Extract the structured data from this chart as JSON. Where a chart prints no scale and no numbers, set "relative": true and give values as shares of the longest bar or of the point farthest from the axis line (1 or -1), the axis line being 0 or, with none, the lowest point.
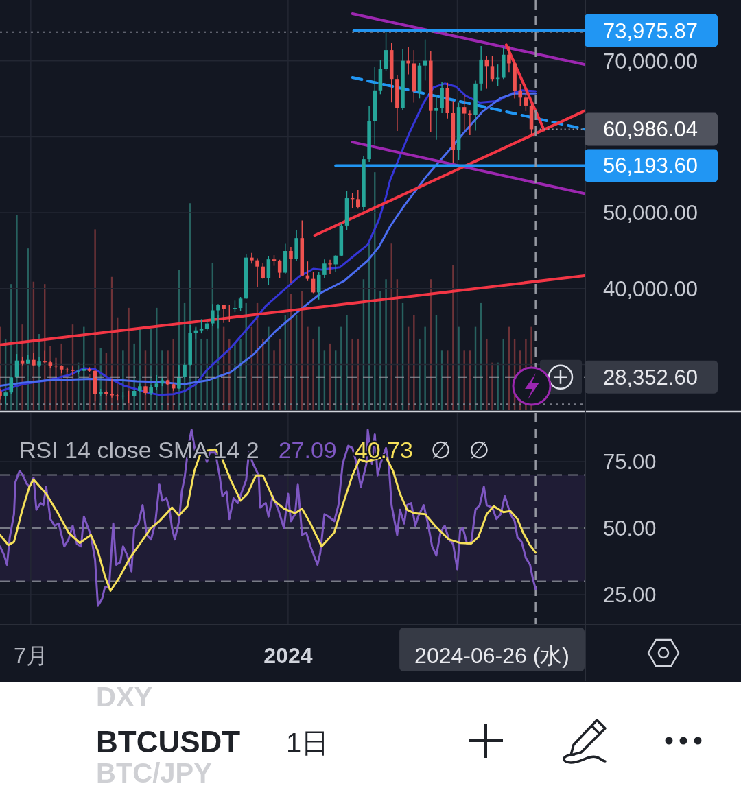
{
  "chart_data": [
    {
      "type": "candlestick",
      "x": [
        "2023-06-09",
        "2023-06-13",
        "2023-06-17",
        "2023-06-21",
        "2023-06-25",
        "2023-06-29",
        "2023-07-03",
        "2023-07-07",
        "2023-07-11",
        "2023-07-15",
        "2023-07-19",
        "2023-07-23",
        "2023-07-27",
        "2023-07-31",
        "2023-08-04",
        "2023-08-08",
        "2023-08-12",
        "2023-08-16",
        "2023-08-20",
        "2023-08-24",
        "2023-08-28",
        "2023-09-01",
        "2023-09-05",
        "2023-09-09",
        "2023-09-13",
        "2023-09-17",
        "2023-09-21",
        "2023-09-25",
        "2023-09-29",
        "2023-10-03",
        "2023-10-07",
        "2023-10-11",
        "2023-10-15",
        "2023-10-19",
        "2023-10-23",
        "2023-10-27",
        "2023-10-31",
        "2023-11-04",
        "2023-11-08",
        "2023-11-12",
        "2023-11-16",
        "2023-11-20",
        "2023-11-24",
        "2023-11-28",
        "2023-12-02",
        "2023-12-06",
        "2023-12-10",
        "2023-12-14",
        "2023-12-18",
        "2023-12-22",
        "2023-12-26",
        "2023-12-30",
        "2024-01-03",
        "2024-01-07",
        "2024-01-11",
        "2024-01-15",
        "2024-01-19",
        "2024-01-23",
        "2024-01-27",
        "2024-01-31",
        "2024-02-04",
        "2024-02-08",
        "2024-02-12",
        "2024-02-16",
        "2024-02-20",
        "2024-02-24",
        "2024-02-28",
        "2024-03-03",
        "2024-03-07",
        "2024-03-11",
        "2024-03-15",
        "2024-03-19",
        "2024-03-23",
        "2024-03-27",
        "2024-03-31",
        "2024-04-04",
        "2024-04-08",
        "2024-04-12",
        "2024-04-16",
        "2024-04-20",
        "2024-04-24",
        "2024-04-28",
        "2024-05-02",
        "2024-05-06",
        "2024-05-10",
        "2024-05-14",
        "2024-05-18",
        "2024-05-22",
        "2024-05-26",
        "2024-05-30",
        "2024-06-03",
        "2024-06-07",
        "2024-06-11",
        "2024-06-15",
        "2024-06-19",
        "2024-06-23"
      ],
      "ohlc": [
        [
          26480,
          26800,
          25400,
          25900
        ],
        [
          25900,
          26400,
          24800,
          26330
        ],
        [
          26330,
          28400,
          26150,
          28300
        ],
        [
          28300,
          31400,
          28250,
          30530
        ],
        [
          30530,
          31050,
          29900,
          30080
        ],
        [
          30080,
          31250,
          30050,
          30620
        ],
        [
          30620,
          31500,
          29850,
          29900
        ],
        [
          29900,
          30950,
          29700,
          30400
        ],
        [
          30400,
          31800,
          30200,
          30300
        ],
        [
          30300,
          30400,
          29500,
          29850
        ],
        [
          29850,
          30200,
          29600,
          29800
        ],
        [
          29800,
          29900,
          28850,
          29350
        ],
        [
          29350,
          29600,
          29000,
          29280
        ],
        [
          29280,
          29750,
          28600,
          29170
        ],
        [
          29170,
          29300,
          28700,
          29180
        ],
        [
          29180,
          30250,
          29150,
          29420
        ],
        [
          29420,
          29650,
          29050,
          29170
        ],
        [
          29170,
          29250,
          25200,
          26100
        ],
        [
          26100,
          26800,
          25800,
          26430
        ],
        [
          26430,
          26580,
          25800,
          26100
        ],
        [
          26100,
          28150,
          25650,
          25940
        ],
        [
          25940,
          26150,
          25330,
          25800
        ],
        [
          25800,
          26430,
          25400,
          25900
        ],
        [
          25900,
          26550,
          24900,
          25850
        ],
        [
          25850,
          26800,
          25750,
          26530
        ],
        [
          26530,
          27480,
          26380,
          27130
        ],
        [
          27130,
          27160,
          26000,
          26250
        ],
        [
          26250,
          27300,
          25990,
          27030
        ],
        [
          27030,
          28600,
          26650,
          27500
        ],
        [
          27500,
          28300,
          27150,
          27930
        ],
        [
          27930,
          28000,
          27250,
          27400
        ],
        [
          27400,
          27500,
          26550,
          26850
        ],
        [
          26850,
          30000,
          26800,
          28330
        ],
        [
          28330,
          30200,
          28200,
          29980
        ],
        [
          29980,
          35200,
          29900,
          34150
        ],
        [
          34150,
          34800,
          33400,
          34500
        ],
        [
          34500,
          35980,
          34100,
          34730
        ],
        [
          34730,
          35900,
          34500,
          35420
        ],
        [
          35420,
          37970,
          35100,
          37140
        ],
        [
          37140,
          37980,
          34800,
          37880
        ],
        [
          37880,
          37900,
          35500,
          37360
        ],
        [
          37360,
          37850,
          35650,
          37290
        ],
        [
          37290,
          38420,
          36900,
          37450
        ],
        [
          37450,
          38900,
          37000,
          38690
        ],
        [
          38690,
          44500,
          38650,
          44080
        ],
        [
          44080,
          44700,
          43300,
          43720
        ],
        [
          43720,
          44000,
          40200,
          42900
        ],
        [
          42900,
          43400,
          41300,
          41380
        ],
        [
          41380,
          44300,
          40500,
          43850
        ],
        [
          43850,
          44400,
          43000,
          43600
        ],
        [
          43600,
          43800,
          41420,
          42100
        ],
        [
          42100,
          45900,
          41900,
          44950
        ],
        [
          44950,
          45500,
          40750,
          43930
        ],
        [
          43930,
          47700,
          43600,
          46650
        ],
        [
          46650,
          48970,
          41700,
          41730
        ],
        [
          41730,
          43580,
          41000,
          41280
        ],
        [
          41280,
          42200,
          39400,
          39500
        ],
        [
          39500,
          42200,
          38560,
          41800
        ],
        [
          41800,
          43840,
          41400,
          43300
        ],
        [
          43300,
          43800,
          41880,
          43190
        ],
        [
          43190,
          44400,
          42250,
          44340
        ],
        [
          44340,
          48600,
          44300,
          48300
        ],
        [
          48300,
          52820,
          47700,
          51900
        ],
        [
          51900,
          52570,
          50620,
          51780
        ],
        [
          51780,
          52980,
          50520,
          50730
        ],
        [
          50730,
          57500,
          50350,
          57040
        ],
        [
          57040,
          64000,
          56700,
          62030
        ],
        [
          62030,
          69170,
          59000,
          66100
        ],
        [
          66100,
          70130,
          65600,
          68900
        ],
        [
          68900,
          73777,
          68700,
          71400
        ],
        [
          71400,
          72400,
          64530,
          67600
        ],
        [
          67600,
          68100,
          60760,
          63800
        ],
        [
          63800,
          71500,
          63500,
          70000
        ],
        [
          70000,
          71770,
          68200,
          69650
        ],
        [
          69650,
          71400,
          64500,
          65960
        ],
        [
          65960,
          69700,
          65060,
          69360
        ],
        [
          69360,
          72800,
          67400,
          70000
        ],
        [
          70000,
          71300,
          60660,
          63400
        ],
        [
          63400,
          65450,
          59600,
          63800
        ],
        [
          63800,
          67200,
          63100,
          66400
        ],
        [
          66400,
          67100,
          62400,
          63100
        ],
        [
          63100,
          64700,
          56550,
          58250
        ],
        [
          58250,
          64500,
          56900,
          63900
        ],
        [
          63900,
          65500,
          60900,
          63050
        ],
        [
          63050,
          63450,
          60200,
          62900
        ],
        [
          62900,
          67400,
          60800,
          67000
        ],
        [
          67000,
          71950,
          66100,
          70150
        ],
        [
          70150,
          70600,
          66300,
          69300
        ],
        [
          69300,
          70600,
          67300,
          67600
        ],
        [
          67600,
          69500,
          66700,
          67750
        ],
        [
          67750,
          71750,
          67600,
          70800
        ],
        [
          70800,
          71950,
          68500,
          69650
        ],
        [
          69650,
          70200,
          65050,
          66000
        ],
        [
          66000,
          66900,
          64050,
          65150
        ],
        [
          65150,
          65700,
          63380,
          64100
        ],
        [
          64100,
          64300,
          60200,
          60986.04
        ]
      ],
      "xlim": [
        "2023-06-09",
        "2024-07-31"
      ],
      "xticks": [
        {
          "value": "2023-07-01",
          "label": null
        },
        {
          "value": "2024-01-01",
          "label": null
        },
        {
          "value": "2024-05-01",
          "label": null
        }
      ],
      "ylim": [
        24000,
        78000
      ],
      "yticks": [
        {
          "value": 30000,
          "label": null
        },
        {
          "value": 40000,
          "label": "40,000.00"
        },
        {
          "value": 50000,
          "label": "50,000.00"
        },
        {
          "value": 60000,
          "label": null
        },
        {
          "value": 70000,
          "label": "70,000.00"
        }
      ],
      "tick_labels": "y",
      "grid": true,
      "series": [
        {
          "type": "line",
          "color": "#3535d6",
          "x": [
            "2023-06-09",
            "2023-06-25",
            "2023-07-12",
            "2023-07-28",
            "2023-08-08",
            "2023-08-16",
            "2023-08-25",
            "2023-09-06",
            "2023-09-23",
            "2023-10-01",
            "2023-10-11",
            "2023-10-19",
            "2023-10-27",
            "2023-11-04",
            "2023-11-21",
            "2023-12-07",
            "2023-12-16",
            "2023-12-27",
            "2024-01-09",
            "2024-01-19",
            "2024-01-25",
            "2024-02-07",
            "2024-02-27",
            "2024-03-06",
            "2024-03-11",
            "2024-03-14",
            "2024-03-18",
            "2024-03-28",
            "2024-04-07",
            "2024-04-14",
            "2024-04-22",
            "2024-04-30",
            "2024-05-07",
            "2024-05-17",
            "2024-05-30",
            "2024-06-09",
            "2024-06-16",
            "2024-06-26"
          ],
          "values": [
            26500,
            27400,
            27900,
            28600,
            29500,
            29400,
            28300,
            27200,
            26300,
            26000,
            26100,
            26500,
            27400,
            29300,
            32200,
            35600,
            37700,
            39500,
            41600,
            42600,
            42500,
            42800,
            45800,
            49100,
            52100,
            54300,
            56100,
            60600,
            64500,
            66500,
            67000,
            66600,
            65400,
            64500,
            64700,
            65700,
            66100,
            66000
          ]
        },
        {
          "type": "line",
          "color": "#4a6cf0",
          "x": [
            "2023-06-09",
            "2023-06-25",
            "2023-07-12",
            "2023-08-13",
            "2023-08-30",
            "2023-09-15",
            "2023-10-01",
            "2023-10-18",
            "2023-11-04",
            "2023-11-21",
            "2023-12-07",
            "2023-12-23",
            "2024-01-09",
            "2024-01-25",
            "2024-02-10",
            "2024-02-27",
            "2024-03-06",
            "2024-03-14",
            "2024-03-24",
            "2024-04-09",
            "2024-04-26",
            "2024-05-06",
            "2024-05-19",
            "2024-06-01",
            "2024-06-11",
            "2024-06-26"
          ],
          "values": [
            27200,
            27600,
            27900,
            28100,
            28000,
            27800,
            27700,
            27400,
            27900,
            29000,
            31300,
            34400,
            37100,
            39500,
            41000,
            43700,
            45500,
            48200,
            50900,
            54800,
            58400,
            60600,
            63300,
            65100,
            65700,
            65700
          ]
        },
        {
          "type": "line",
          "color": "#9c27b0",
          "x": [
            "2024-02-16",
            "2024-07-31"
          ],
          "values": [
            76200,
            69500
          ]
        },
        {
          "type": "line",
          "color": "#9c27b0",
          "x": [
            "2024-02-16",
            "2024-07-31"
          ],
          "values": [
            59300,
            52500
          ]
        },
        {
          "type": "line",
          "color": "#2196f3",
          "line_style": "dashed",
          "x": [
            "2024-02-16",
            "2024-07-31"
          ],
          "values": [
            67800,
            61000
          ]
        },
        {
          "type": "line",
          "color": "#f23645",
          "x": [
            "2024-01-20",
            "2024-07-31"
          ],
          "values": [
            47000,
            63400
          ]
        },
        {
          "type": "line",
          "color": "#f23645",
          "x": [
            "2023-06-09",
            "2024-07-31"
          ],
          "values": [
            32600,
            41700
          ]
        },
        {
          "type": "line",
          "color": "#f23645",
          "x": [
            "2024-06-05",
            "2024-07-02"
          ],
          "values": [
            72100,
            60900
          ]
        },
        {
          "type": "line",
          "color": "#2196f3",
          "x": [
            "2024-02-17",
            "2024-07-31"
          ],
          "values": [
            73975.87,
            73975.87
          ],
          "value_labels": [
            null,
            "73,975.87"
          ]
        },
        {
          "type": "line",
          "color": "#2196f3",
          "x": [
            "2024-02-04",
            "2024-07-31"
          ],
          "values": [
            56193.6,
            56193.6
          ],
          "value_labels": [
            null,
            "56,193.60"
          ]
        }
      ],
      "ref_lines": [
        {
          "axis": "y",
          "value": 73777,
          "line_style": "dotted",
          "color": "#787b86"
        },
        {
          "axis": "y",
          "value": 24800,
          "line_style": "dotted",
          "color": "#787b86"
        },
        {
          "axis": "y",
          "value": 28352.6,
          "label": "28,352.60",
          "line_style": "dashed",
          "color": "#9598a1"
        },
        {
          "axis": "x",
          "value": "2024-06-26",
          "line_style": "dashed",
          "color": "#9598a1"
        }
      ],
      "annotations": [
        {
          "text": "60,986.04",
          "x": "2024-06-26",
          "y": 60986.04
        }
      ]
    },
    {
      "type": "bar",
      "relative": true,
      "tick_labels": false,
      "xlim": [
        "2023-06-09",
        "2024-07-31"
      ],
      "x": [
        "2023-06-09",
        "2023-06-13",
        "2023-06-17",
        "2023-06-21",
        "2023-06-25",
        "2023-06-29",
        "2023-07-03",
        "2023-07-07",
        "2023-07-11",
        "2023-07-15",
        "2023-07-19",
        "2023-07-23",
        "2023-07-27",
        "2023-07-31",
        "2023-08-04",
        "2023-08-08",
        "2023-08-12",
        "2023-08-16",
        "2023-08-20",
        "2023-08-24",
        "2023-08-28",
        "2023-09-01",
        "2023-09-05",
        "2023-09-09",
        "2023-09-13",
        "2023-09-17",
        "2023-09-21",
        "2023-09-25",
        "2023-09-29",
        "2023-10-03",
        "2023-10-07",
        "2023-10-11",
        "2023-10-15",
        "2023-10-19",
        "2023-10-23",
        "2023-10-27",
        "2023-10-31",
        "2023-11-04",
        "2023-11-08",
        "2023-11-12",
        "2023-11-16",
        "2023-11-20",
        "2023-11-24",
        "2023-11-28",
        "2023-12-02",
        "2023-12-06",
        "2023-12-10",
        "2023-12-14",
        "2023-12-18",
        "2023-12-22",
        "2023-12-26",
        "2023-12-30",
        "2024-01-03",
        "2024-01-07",
        "2024-01-11",
        "2024-01-15",
        "2024-01-19",
        "2024-01-23",
        "2024-01-27",
        "2024-01-31",
        "2024-02-04",
        "2024-02-08",
        "2024-02-12",
        "2024-02-16",
        "2024-02-20",
        "2024-02-24",
        "2024-02-28",
        "2024-03-03",
        "2024-03-07",
        "2024-03-11",
        "2024-03-15",
        "2024-03-19",
        "2024-03-23",
        "2024-03-27",
        "2024-03-31",
        "2024-04-04",
        "2024-04-08",
        "2024-04-12",
        "2024-04-16",
        "2024-04-20",
        "2024-04-24",
        "2024-04-28",
        "2024-05-02",
        "2024-05-06",
        "2024-05-10",
        "2024-05-14",
        "2024-05-18",
        "2024-05-22",
        "2024-05-26",
        "2024-05-30",
        "2024-06-03",
        "2024-06-07",
        "2024-06-11",
        "2024-06-15",
        "2024-06-19",
        "2024-06-23"
      ],
      "values": [
        0.35,
        0.3,
        0.53,
        0.82,
        0.36,
        0.68,
        0.54,
        0.32,
        0.53,
        0.27,
        0.22,
        0.28,
        0.18,
        0.36,
        0.2,
        0.35,
        0.15,
        0.76,
        0.26,
        0.24,
        0.56,
        0.39,
        0.25,
        0.43,
        0.28,
        0.34,
        0.25,
        0.34,
        0.43,
        0.25,
        0.25,
        0.3,
        0.59,
        0.45,
        0.87,
        0.35,
        0.3,
        0.3,
        0.62,
        0.4,
        0.35,
        0.3,
        0.28,
        0.3,
        0.45,
        0.35,
        0.45,
        0.3,
        0.35,
        0.25,
        0.3,
        0.4,
        0.49,
        0.4,
        0.5,
        0.35,
        0.3,
        0.35,
        0.25,
        0.28,
        0.25,
        0.35,
        0.4,
        0.3,
        0.3,
        0.55,
        0.7,
        1,
        0.5,
        0.55,
        0.7,
        0.55,
        0.45,
        0.35,
        0.4,
        0.3,
        0.35,
        0.55,
        0.4,
        0.25,
        0.25,
        0.61,
        0.35,
        0.25,
        0.25,
        0.35,
        0.45,
        0.3,
        0.2,
        0.2,
        0.3,
        0.35,
        0.3,
        0.25,
        0.3,
        0.35
      ],
      "colors": [
        "#6e3338",
        "#27615f",
        "#27615f",
        "#27615f",
        "#6e3338",
        "#27615f",
        "#6e3338",
        "#27615f",
        "#6e3338",
        "#6e3338",
        "#6e3338",
        "#6e3338",
        "#6e3338",
        "#6e3338",
        "#27615f",
        "#27615f",
        "#6e3338",
        "#6e3338",
        "#27615f",
        "#6e3338",
        "#6e3338",
        "#6e3338",
        "#27615f",
        "#6e3338",
        "#27615f",
        "#27615f",
        "#6e3338",
        "#27615f",
        "#27615f",
        "#27615f",
        "#6e3338",
        "#6e3338",
        "#27615f",
        "#27615f",
        "#27615f",
        "#27615f",
        "#27615f",
        "#27615f",
        "#27615f",
        "#27615f",
        "#6e3338",
        "#6e3338",
        "#27615f",
        "#27615f",
        "#27615f",
        "#6e3338",
        "#6e3338",
        "#6e3338",
        "#27615f",
        "#6e3338",
        "#6e3338",
        "#27615f",
        "#6e3338",
        "#27615f",
        "#6e3338",
        "#6e3338",
        "#6e3338",
        "#27615f",
        "#27615f",
        "#6e3338",
        "#27615f",
        "#27615f",
        "#27615f",
        "#6e3338",
        "#6e3338",
        "#27615f",
        "#27615f",
        "#27615f",
        "#27615f",
        "#27615f",
        "#6e3338",
        "#6e3338",
        "#27615f",
        "#6e3338",
        "#6e3338",
        "#27615f",
        "#27615f",
        "#6e3338",
        "#27615f",
        "#27615f",
        "#6e3338",
        "#6e3338",
        "#27615f",
        "#6e3338",
        "#6e3338",
        "#27615f",
        "#27615f",
        "#6e3338",
        "#6e3338",
        "#27615f",
        "#27615f",
        "#6e3338",
        "#6e3338",
        "#6e3338",
        "#6e3338",
        "#6e3338"
      ]
    },
    {
      "type": "line",
      "title": "RSI 14 close SMA 14 2",
      "annotations": [
        "27.09",
        "40.73",
        "∅",
        "∅"
      ],
      "series": [
        {
          "color": "#7e57c2",
          "x": [
            "2023-06-09",
            "2023-06-12",
            "2023-06-14",
            "2023-06-16",
            "2023-06-19",
            "2023-06-20",
            "2023-06-23",
            "2023-06-25",
            "2023-06-28",
            "2023-06-30",
            "2023-07-03",
            "2023-07-05",
            "2023-07-08",
            "2023-07-10",
            "2023-07-12",
            "2023-07-15",
            "2023-07-18",
            "2023-07-21",
            "2023-07-25",
            "2023-07-28",
            "2023-07-31",
            "2023-08-03",
            "2023-08-06",
            "2023-08-08",
            "2023-08-11",
            "2023-08-13",
            "2023-08-16",
            "2023-08-18",
            "2023-08-21",
            "2023-08-23",
            "2023-08-26",
            "2023-08-29",
            "2023-08-31",
            "2023-09-03",
            "2023-09-05",
            "2023-09-08",
            "2023-09-11",
            "2023-09-13",
            "2023-09-16",
            "2023-09-19",
            "2023-09-22",
            "2023-09-25",
            "2023-09-28",
            "2023-10-01",
            "2023-10-03",
            "2023-10-06",
            "2023-10-08",
            "2023-10-10",
            "2023-10-12",
            "2023-10-15",
            "2023-10-17",
            "2023-10-19",
            "2023-10-22",
            "2023-10-24",
            "2023-10-27",
            "2023-10-29",
            "2023-11-01",
            "2023-11-04",
            "2023-11-06",
            "2023-11-10",
            "2023-11-13",
            "2023-11-15",
            "2023-11-18",
            "2023-11-20",
            "2023-11-23",
            "2023-11-26",
            "2023-11-29",
            "2023-12-02",
            "2023-12-04",
            "2023-12-07",
            "2023-12-11",
            "2023-12-12",
            "2023-12-16",
            "2023-12-18",
            "2023-12-21",
            "2023-12-25",
            "2023-12-29",
            "2024-01-01",
            "2024-01-03",
            "2024-01-06",
            "2024-01-08",
            "2024-01-11",
            "2024-01-14",
            "2024-01-17",
            "2024-01-22",
            "2024-01-24",
            "2024-01-27",
            "2024-01-30",
            "2024-02-03",
            "2024-02-06",
            "2024-02-09",
            "2024-02-13",
            "2024-02-16",
            "2024-02-19",
            "2024-02-22",
            "2024-02-26",
            "2024-02-27",
            "2024-03-01",
            "2024-03-03",
            "2024-03-05",
            "2024-03-07",
            "2024-03-11",
            "2024-03-13",
            "2024-03-15",
            "2024-03-19",
            "2024-03-21",
            "2024-03-24",
            "2024-03-26",
            "2024-03-29",
            "2024-04-01",
            "2024-04-03",
            "2024-04-07",
            "2024-04-10",
            "2024-04-13",
            "2024-04-16",
            "2024-04-19",
            "2024-04-22",
            "2024-04-25",
            "2024-04-28",
            "2024-05-01",
            "2024-05-03",
            "2024-05-05",
            "2024-05-08",
            "2024-05-11",
            "2024-05-14",
            "2024-05-17",
            "2024-05-20",
            "2024-05-22",
            "2024-05-26",
            "2024-05-29",
            "2024-06-01",
            "2024-06-04",
            "2024-06-08",
            "2024-06-11",
            "2024-06-13",
            "2024-06-16",
            "2024-06-19",
            "2024-06-22",
            "2024-06-24",
            "2024-06-26"
          ],
          "values": [
            43.1,
            39.7,
            36.2,
            46.6,
            55.2,
            67.2,
            71.5,
            70.2,
            66.7,
            65.5,
            68.9,
            56.9,
            59.4,
            58.6,
            65.5,
            53.4,
            50.9,
            51.7,
            43.1,
            45.7,
            50.9,
            44.0,
            43.1,
            54.3,
            50.0,
            47.4,
            38.0,
            20.8,
            23.4,
            27.7,
            27.7,
            51.7,
            36.2,
            37.1,
            43.1,
            39.7,
            33.7,
            50.0,
            51.7,
            58.6,
            47.4,
            45.7,
            51.7,
            66.3,
            60.3,
            61.2,
            57.7,
            50.0,
            45.7,
            52.6,
            63.7,
            68.9,
            81.8,
            86.9,
            77.5,
            80.1,
            79.2,
            74.9,
            78.4,
            78.4,
            69.8,
            62.0,
            63.7,
            53.4,
            61.2,
            59.4,
            63.7,
            68.0,
            78.4,
            74.1,
            69.8,
            57.7,
            59.4,
            54.3,
            62.0,
            56.9,
            50.0,
            62.9,
            52.6,
            55.2,
            66.3,
            47.4,
            48.3,
            43.1,
            36.2,
            40.6,
            55.2,
            54.3,
            52.6,
            58.6,
            74.1,
            80.9,
            80.1,
            74.1,
            65.5,
            74.1,
            86.9,
            74.1,
            85.2,
            69.8,
            74.1,
            80.1,
            74.1,
            58.6,
            47.4,
            56.9,
            51.7,
            58.6,
            59.4,
            50.9,
            54.3,
            58.6,
            51.7,
            43.1,
            39.7,
            48.3,
            50.9,
            45.7,
            44.0,
            34.5,
            49.1,
            50.0,
            44.0,
            44.8,
            56.9,
            58.6,
            65.5,
            58.6,
            57.7,
            53.4,
            55.2,
            62.0,
            55.2,
            52.6,
            46.6,
            44.8,
            38.8,
            36.2,
            31.0,
            27.09
          ]
        },
        {
          "color": "#f5e05a",
          "x": [
            "2023-06-09",
            "2023-06-15",
            "2023-06-19",
            "2023-06-25",
            "2023-06-30",
            "2023-07-03",
            "2023-07-12",
            "2023-07-20",
            "2023-07-28",
            "2023-08-05",
            "2023-08-13",
            "2023-08-18",
            "2023-08-23",
            "2023-08-27",
            "2023-09-02",
            "2023-09-10",
            "2023-09-18",
            "2023-09-25",
            "2023-10-01",
            "2023-10-10",
            "2023-10-15",
            "2023-10-21",
            "2023-10-26",
            "2023-10-31",
            "2023-11-10",
            "2023-11-15",
            "2023-11-21",
            "2023-11-28",
            "2023-12-03",
            "2023-12-09",
            "2023-12-14",
            "2023-12-22",
            "2023-12-29",
            "2024-01-06",
            "2024-01-11",
            "2024-01-17",
            "2024-01-25",
            "2024-02-03",
            "2024-02-09",
            "2024-02-16",
            "2024-02-21",
            "2024-02-26",
            "2024-03-03",
            "2024-03-11",
            "2024-03-16",
            "2024-03-21",
            "2024-03-26",
            "2024-03-31",
            "2024-04-08",
            "2024-04-15",
            "2024-04-25",
            "2024-05-03",
            "2024-05-11",
            "2024-05-16",
            "2024-05-22",
            "2024-05-27",
            "2024-06-03",
            "2024-06-08",
            "2024-06-13",
            "2024-06-17",
            "2024-06-22",
            "2024-06-26"
          ],
          "values": [
            47.4,
            43.6,
            44.8,
            56.9,
            65.5,
            68.2,
            62.9,
            56.0,
            48.3,
            44.4,
            47.4,
            41.4,
            31.9,
            26.4,
            31.1,
            38.8,
            44.8,
            50.0,
            52.6,
            57.7,
            54.7,
            58.2,
            71.5,
            78.8,
            79.6,
            75.8,
            68.0,
            60.3,
            62.9,
            69.8,
            69.8,
            60.3,
            57.3,
            55.6,
            57.3,
            51.7,
            43.1,
            48.3,
            58.6,
            69.8,
            75.8,
            74.9,
            75.8,
            76.6,
            71.5,
            62.9,
            56.9,
            55.6,
            55.2,
            50.9,
            45.7,
            44.4,
            44.2,
            46.6,
            55.2,
            58.2,
            56.0,
            56.4,
            53.4,
            48.3,
            43.5,
            40.73
          ]
        }
      ],
      "xlim": [
        "2023-06-09",
        "2024-07-31"
      ],
      "xticks": [
        {
          "value": "2023-07-01",
          "label": "7月"
        },
        {
          "value": "2024-01-01",
          "label": "2024"
        },
        {
          "value": "2024-05-01",
          "label": null
        }
      ],
      "ylim": [
        13.9,
        93.3
      ],
      "yticks": [
        {
          "value": 25,
          "label": "25.00"
        },
        {
          "value": 50,
          "label": "50.00"
        },
        {
          "value": 75,
          "label": "75.00"
        }
      ],
      "grid": true,
      "bands": [
        {
          "axis": "y",
          "from": 30,
          "to": 70,
          "color": "#1f1c35"
        }
      ],
      "ref_lines": [
        {
          "axis": "y",
          "value": 70,
          "line_style": "dashed",
          "color": "#787b86"
        },
        {
          "axis": "y",
          "value": 50,
          "line_style": "dashed",
          "color": "#787b86"
        },
        {
          "axis": "y",
          "value": 30,
          "line_style": "dashed",
          "color": "#787b86"
        },
        {
          "axis": "x",
          "value": "2024-06-26",
          "label": "2024-06-26 (水)",
          "line_style": "dashed",
          "color": "#9598a1"
        }
      ]
    },
    {
      "type": "other",
      "title": "BTCUSDT",
      "subtitle": "1日",
      "annotations": [
        "DXY",
        "BTC/JPY"
      ]
    }
  ]
}
